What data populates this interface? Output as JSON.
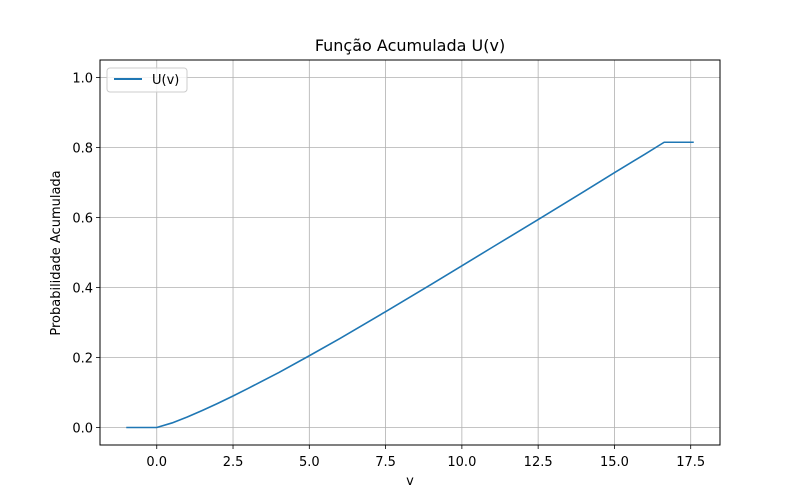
{
  "chart_data": {
    "type": "line",
    "title": "Função Acumulada U(v)",
    "xlabel": "v",
    "ylabel": "Probabilidade Acumulada",
    "xlim": [
      -1.86,
      18.46
    ],
    "ylim": [
      -0.05,
      1.05
    ],
    "xticks": [
      0.0,
      2.5,
      5.0,
      7.5,
      10.0,
      12.5,
      15.0,
      17.5
    ],
    "xtick_labels": [
      "0.0",
      "2.5",
      "5.0",
      "7.5",
      "10.0",
      "12.5",
      "15.0",
      "17.5"
    ],
    "yticks": [
      0.0,
      0.2,
      0.4,
      0.6,
      0.8,
      1.0
    ],
    "ytick_labels": [
      "0.0",
      "0.2",
      "0.4",
      "0.6",
      "0.8",
      "1.0"
    ],
    "grid": true,
    "legend": "upper-left",
    "series": [
      {
        "name": "U(v)",
        "color": "#1f77b4",
        "x": [
          -1.0,
          0.0,
          0.5,
          1.0,
          1.5,
          2.0,
          2.5,
          3.0,
          4.0,
          5.0,
          6.0,
          7.5,
          9.0,
          10.0,
          11.0,
          12.5,
          14.0,
          15.0,
          16.0,
          16.63,
          17.6
        ],
        "y": [
          0.0,
          0.0,
          0.013,
          0.03,
          0.049,
          0.069,
          0.09,
          0.112,
          0.157,
          0.205,
          0.254,
          0.331,
          0.409,
          0.462,
          0.515,
          0.594,
          0.674,
          0.728,
          0.781,
          0.815,
          0.815
        ]
      }
    ]
  }
}
